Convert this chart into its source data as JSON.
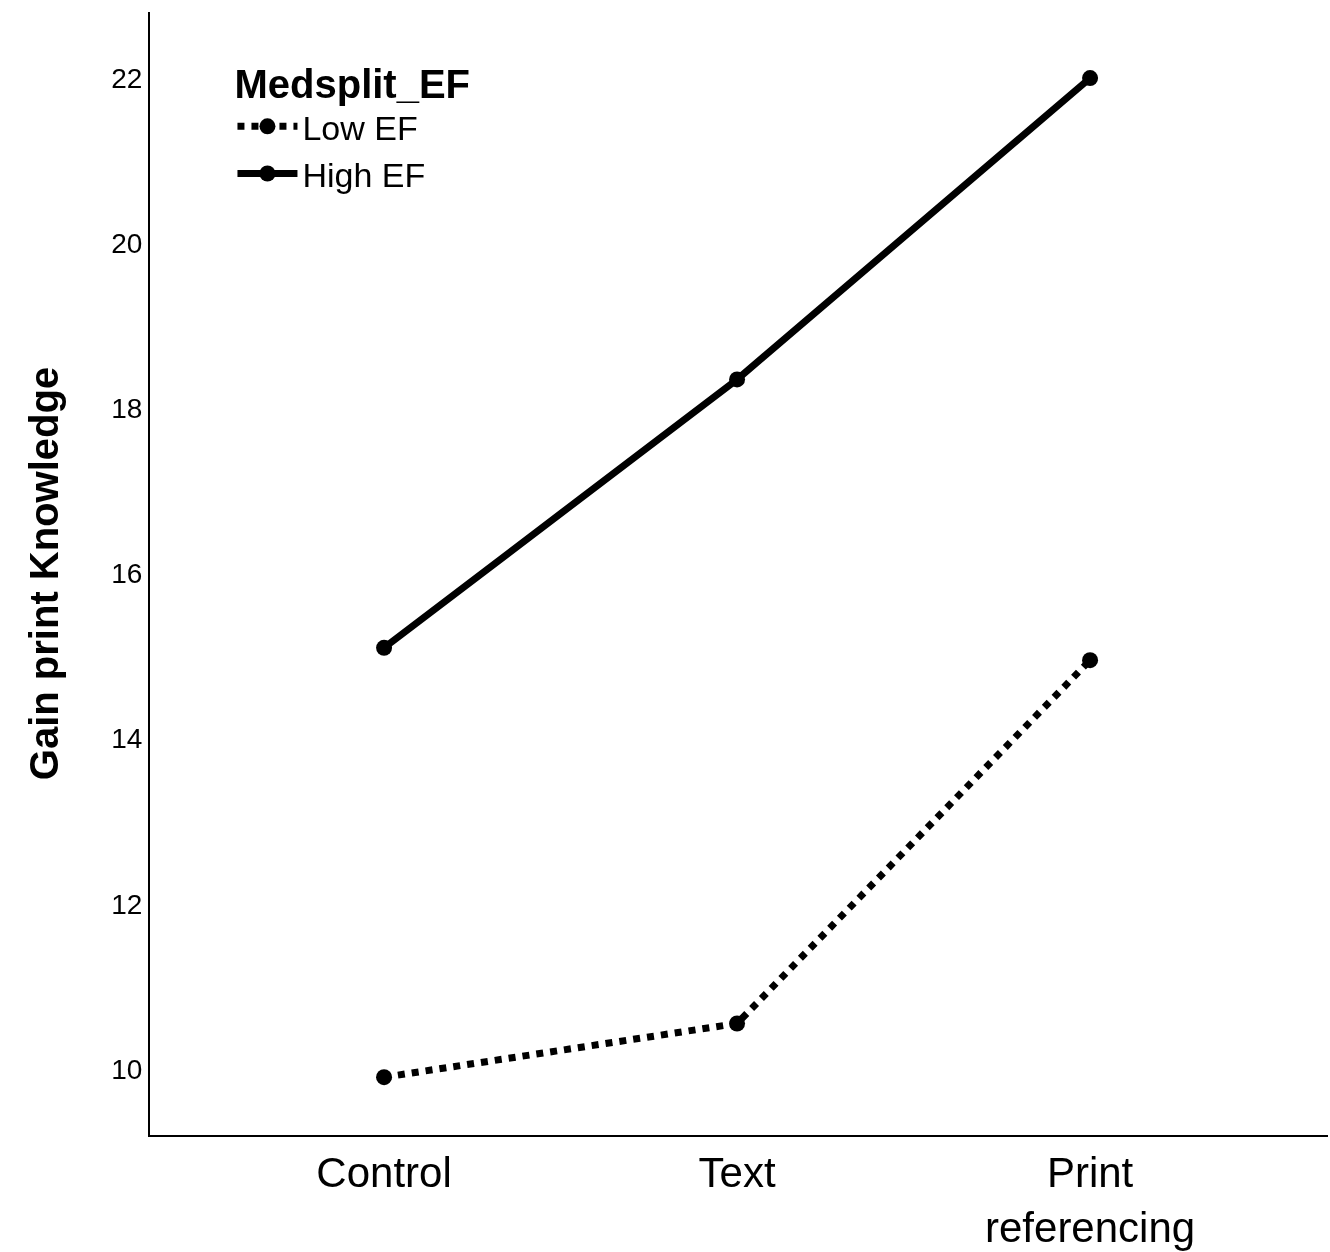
{
  "chart_data": {
    "type": "line",
    "ylabel": "Gain print Knowledge",
    "legend_title": "Medsplit_EF",
    "categories": [
      "Control",
      "Text",
      "Print referencing"
    ],
    "series": [
      {
        "name": "Low EF",
        "color": "#000000",
        "line_style": "dotted",
        "values": [
          9.9,
          10.55,
          14.95
        ]
      },
      {
        "name": "High EF",
        "color": "#000000",
        "line_style": "solid",
        "values": [
          15.1,
          18.35,
          22.0
        ]
      }
    ],
    "ylim": [
      9.2,
      22.8
    ],
    "yticks": [
      10,
      12,
      14,
      16,
      18,
      20,
      22
    ],
    "grid": false,
    "legend": "top left",
    "marker": "circle"
  }
}
